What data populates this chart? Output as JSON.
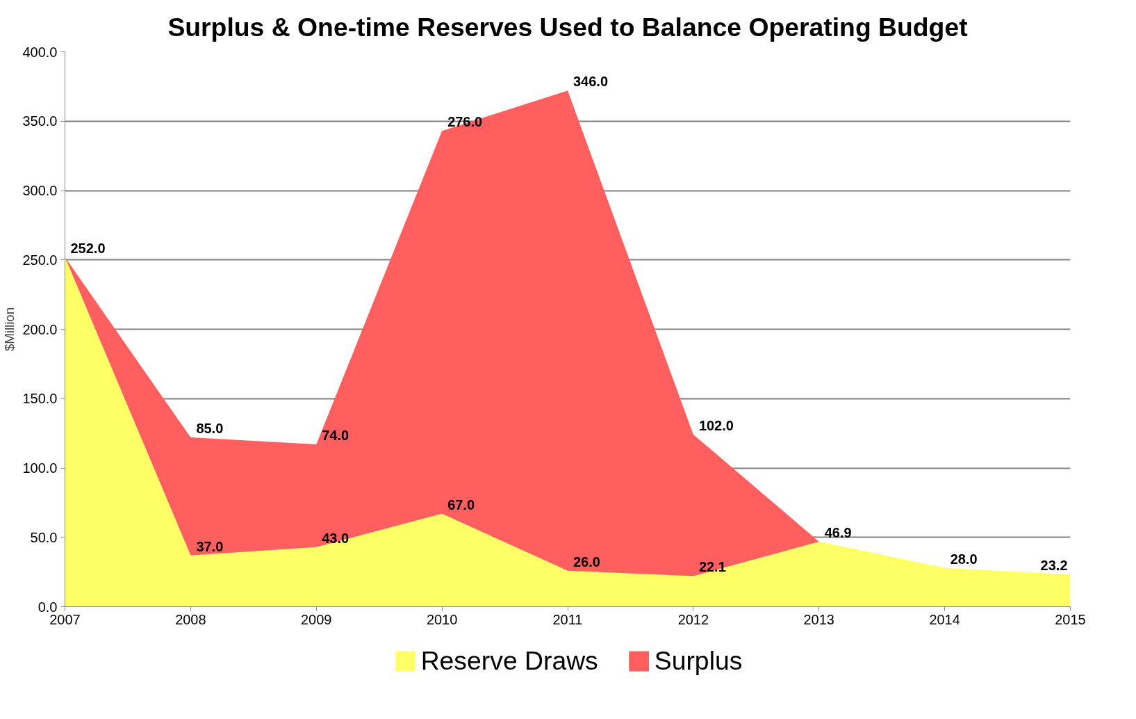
{
  "chart_data": {
    "type": "area",
    "stacked": true,
    "title": "Surplus & One-time Reserves Used to Balance Operating Budget",
    "ylabel": "$Million",
    "x": [
      2007,
      2008,
      2009,
      2010,
      2011,
      2012,
      2013,
      2014,
      2015
    ],
    "xlim": [
      2007,
      2015
    ],
    "xticks": [
      2007,
      2008,
      2009,
      2010,
      2011,
      2012,
      2013,
      2014,
      2015
    ],
    "ylim": [
      0,
      400
    ],
    "yticks": [
      {
        "value": 0,
        "label": "0.0"
      },
      {
        "value": 50,
        "label": "50.0"
      },
      {
        "value": 100,
        "label": "100.0"
      },
      {
        "value": 150,
        "label": "150.0"
      },
      {
        "value": 200,
        "label": "200.0"
      },
      {
        "value": 250,
        "label": "250.0"
      },
      {
        "value": 300,
        "label": "300.0"
      },
      {
        "value": 350,
        "label": "350.0"
      },
      {
        "value": 400,
        "label": "400.0"
      }
    ],
    "series": [
      {
        "name": "Reserve Draws",
        "color": "#ffff66",
        "values": [
          252,
          37,
          43,
          67,
          26,
          22.1,
          46.9,
          28,
          23.2
        ],
        "value_labels": [
          "252.0",
          "37.0",
          "43.0",
          "67.0",
          "26.0",
          "22.1",
          "46.9",
          "28.0",
          "23.2"
        ]
      },
      {
        "name": "Surplus",
        "color": "#ff5f5f",
        "values": [
          0,
          85,
          74,
          276,
          346,
          102,
          0,
          null,
          null
        ],
        "value_labels": [
          null,
          "85.0",
          "74.0",
          "276.0",
          "346.0",
          "102.0",
          null,
          null,
          null
        ]
      }
    ],
    "grid": "y",
    "legend": "bottom"
  }
}
